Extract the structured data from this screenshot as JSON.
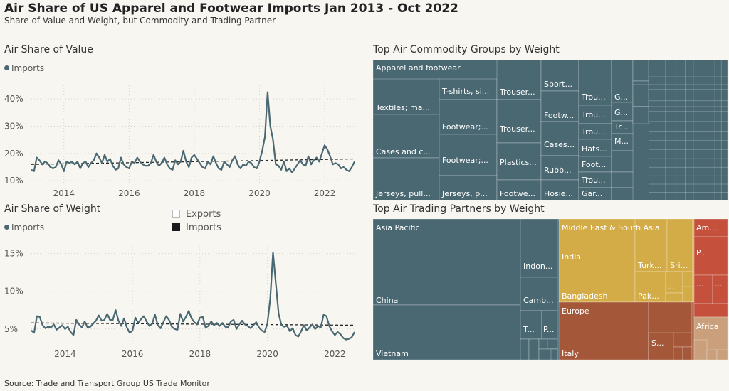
{
  "title": "Air Share of US Apparel and Footwear Imports Jan 2013 - Oct 2022",
  "subtitle": "Share of Value and Weight, but Commodity and Trading Partner",
  "source": "Source: Trade and Transport Group US Trade Monitor",
  "colors": {
    "imports": "#4a6872",
    "bg": "#f8f6f1"
  },
  "chart_data": [
    {
      "type": "line",
      "title": "Air Share of Value",
      "legend": [
        "Imports"
      ],
      "x_ticks": [
        "2014",
        "2016",
        "2018",
        "2020",
        "2022"
      ],
      "y_ticks": [
        "10%",
        "20%",
        "30%",
        "40%"
      ],
      "ylim": [
        9,
        45
      ],
      "x_start": "2013-01",
      "trend_start": 16.0,
      "trend_end": 18.0,
      "series": [
        {
          "name": "Imports",
          "values": [
            14,
            13.5,
            18.5,
            17.5,
            16,
            17,
            16.5,
            15,
            14.5,
            15,
            17.5,
            16,
            13.5,
            17,
            16.5,
            17,
            16,
            17,
            14.5,
            16.5,
            17,
            15,
            16.5,
            17.5,
            20,
            18.5,
            16.5,
            19.5,
            17,
            18,
            15.5,
            14,
            14.5,
            18.5,
            16,
            15,
            14.5,
            17,
            16.5,
            18.5,
            17,
            16,
            15.5,
            15.5,
            16.5,
            19.5,
            17,
            15.5,
            16.5,
            18.5,
            16,
            14.5,
            14,
            17.5,
            16,
            17,
            21,
            17,
            15,
            18.5,
            19.5,
            18,
            16.5,
            15,
            14.5,
            17,
            16,
            19,
            16.5,
            14.5,
            14,
            17,
            16,
            15,
            17.5,
            19,
            16,
            14.5,
            16,
            15.5,
            17,
            16.5,
            15,
            14.5,
            17,
            21,
            26,
            42.5,
            30,
            25,
            16,
            15.5,
            14,
            17,
            13.5,
            14.5,
            13,
            14.5,
            16,
            17.5,
            16,
            15.5,
            19,
            16,
            17.5,
            18.5,
            17,
            20,
            23,
            21.5,
            19,
            16,
            16.5,
            16,
            14.5,
            15,
            14,
            13.5,
            15,
            17
          ]
        }
      ]
    },
    {
      "type": "line",
      "title": "Air Share of Weight",
      "legend": [
        "Imports"
      ],
      "x_ticks": [
        "2014",
        "2016",
        "2018",
        "2020",
        "2022"
      ],
      "y_ticks": [
        "5%",
        "10%",
        "15%"
      ],
      "ylim": [
        3,
        16
      ],
      "x_start": "2013-01",
      "trend_start": 5.8,
      "trend_end": 5.5,
      "series": [
        {
          "name": "Imports",
          "values": [
            4.8,
            4.5,
            6.7,
            6.6,
            5.5,
            5.1,
            5.3,
            5.2,
            5.6,
            4.9,
            5.2,
            5.5,
            5,
            5.3,
            4.6,
            4.2,
            6.2,
            5.6,
            5.2,
            6,
            5.2,
            5.3,
            5.7,
            6.1,
            6.8,
            6.1,
            6.2,
            7,
            6.2,
            6.2,
            7.5,
            6.1,
            5.4,
            6.4,
            5.2,
            4.5,
            4.8,
            6.5,
            5.8,
            6.3,
            6.7,
            6,
            5.4,
            5.7,
            6.9,
            5.5,
            5.1,
            5.9,
            6.7,
            6.2,
            5.3,
            5,
            4.9,
            7,
            6,
            6.6,
            7.4,
            6.4,
            5.9,
            5.6,
            6.5,
            6.6,
            5.2,
            5.4,
            6,
            5.5,
            5.8,
            5.4,
            5.8,
            5.3,
            5.2,
            6,
            6.2,
            5,
            5.6,
            6.1,
            5.6,
            5.4,
            5.1,
            5.5,
            5.9,
            5.2,
            4.8,
            4.6,
            5.7,
            9,
            15.1,
            11,
            7,
            5.5,
            5.3,
            5.4,
            4.7,
            5.1,
            4.2,
            4,
            4.7,
            5.5,
            4.8,
            5.2,
            5.6,
            5,
            5.4,
            5.2,
            6.9,
            6.7,
            5.4,
            4.7,
            4.2,
            4.6,
            4.3,
            3.8,
            3.6,
            3.7,
            3.9,
            4.6
          ]
        }
      ]
    },
    {
      "type": "treemap",
      "title": "Top Air Commodity Groups by Weight",
      "color": "#4a6872",
      "labels": [
        "Apparel and footwear",
        "Textiles; ma...",
        "Cases and c...",
        "Jerseys, pull...",
        "T-shirts, si...",
        "Footwear;...",
        "Footwear;...",
        "Jerseys, p...",
        "Trouser...",
        "Trouser...",
        "Plastics...",
        "Footwe...",
        "Sport...",
        "Footw...",
        "Cases...",
        "Rubb...",
        "Hosie...",
        "Trou...",
        "Trou...",
        "Trou...",
        "Hats...",
        "Foot...",
        "Trou...",
        "Gar...",
        "G...",
        "G...",
        "Tr...",
        "M..."
      ]
    },
    {
      "type": "treemap",
      "title": "Top Air Trading Partners by Weight",
      "regions": [
        {
          "name": "Asia Pacific",
          "color": "#4a6872",
          "labels": [
            "China",
            "Vietnam",
            "Indon...",
            "Camb...",
            "T...",
            "P..."
          ]
        },
        {
          "name": "Middle East & South Asia",
          "color": "#d4ac47",
          "labels": [
            "India",
            "Bangladesh",
            "Turk...",
            "Sri...",
            "Pak...",
            "..."
          ]
        },
        {
          "name": "Europe",
          "color": "#a5573a",
          "labels": [
            "Italy",
            "S..."
          ]
        },
        {
          "name": "Am...",
          "color": "#c5513d",
          "labels": [
            "P...",
            "...",
            "..."
          ]
        },
        {
          "name": "Africa",
          "color": "#c9a07b",
          "labels": []
        }
      ]
    }
  ],
  "legend_box": {
    "exports": "Exports",
    "imports": "Imports"
  }
}
